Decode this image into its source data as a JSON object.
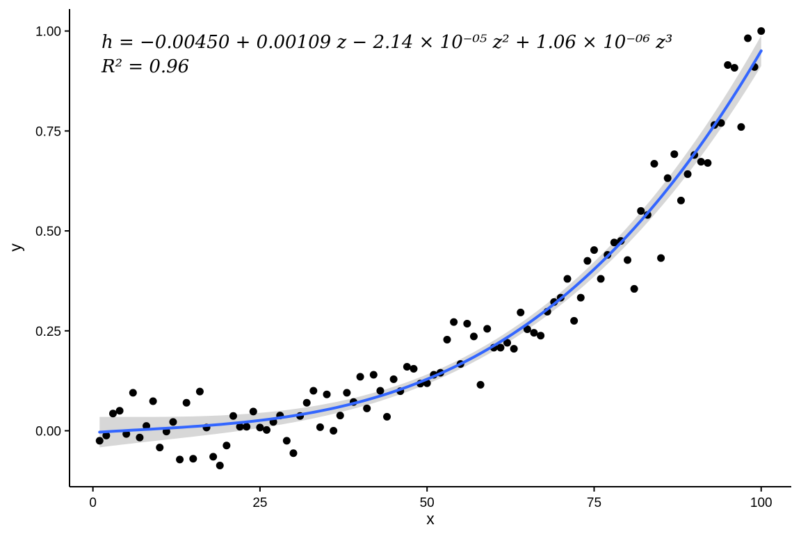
{
  "chart_data": {
    "type": "scatter",
    "xlabel": "x",
    "ylabel": "y",
    "xlim": [
      -3.5,
      104.5
    ],
    "ylim": [
      -0.14,
      1.055
    ],
    "x_ticks": [
      0,
      25,
      50,
      75,
      100
    ],
    "x_tick_labels": [
      "0",
      "25",
      "50",
      "75",
      "100"
    ],
    "y_ticks": [
      0,
      0.25,
      0.5,
      0.75,
      1.0
    ],
    "y_tick_labels": [
      "0.00",
      "0.25",
      "0.50",
      "0.75",
      "1.00"
    ],
    "grid": false,
    "legend": "none",
    "point_color": "#000000",
    "fit_color": "#3366ff",
    "band_color": "#d3d3d3",
    "annotations": {
      "equation": "h = −0.00450 + 0.00109 z − 2.14 × 10⁻⁰⁵ z² + 1.06 × 10⁻⁰⁶ z³",
      "r_squared": "R² = 0.96"
    },
    "fit_coefficients": [
      -0.0045,
      0.00109,
      -2.14e-05,
      1.06e-06
    ],
    "band_halfwidth": {
      "ends": 0.038,
      "middle": 0.012
    },
    "points": {
      "x": [
        1,
        2,
        3,
        4,
        5,
        6,
        7,
        8,
        9,
        10,
        11,
        12,
        13,
        14,
        15,
        16,
        17,
        18,
        19,
        20,
        21,
        22,
        23,
        24,
        25,
        26,
        27,
        28,
        29,
        30,
        31,
        32,
        33,
        34,
        35,
        36,
        37,
        38,
        39,
        40,
        41,
        42,
        43,
        44,
        45,
        46,
        47,
        48,
        49,
        50,
        51,
        52,
        53,
        54,
        55,
        56,
        57,
        58,
        59,
        60,
        61,
        62,
        63,
        64,
        65,
        66,
        67,
        68,
        69,
        70,
        71,
        72,
        73,
        74,
        75,
        76,
        77,
        78,
        79,
        80,
        81,
        82,
        83,
        84,
        85,
        86,
        87,
        88,
        89,
        90,
        91,
        92,
        93,
        94,
        95,
        96,
        97,
        98,
        99,
        100
      ],
      "y": [
        -0.025,
        -0.012,
        0.043,
        0.05,
        -0.008,
        0.095,
        -0.017,
        0.012,
        0.074,
        -0.042,
        -0.002,
        0.022,
        -0.072,
        0.07,
        -0.07,
        0.098,
        0.008,
        -0.065,
        -0.087,
        -0.037,
        0.037,
        0.01,
        0.01,
        0.048,
        0.008,
        0.002,
        0.022,
        0.038,
        -0.025,
        -0.056,
        0.037,
        0.07,
        0.1,
        0.009,
        0.091,
        0.0,
        0.038,
        0.095,
        0.072,
        0.135,
        0.056,
        0.14,
        0.1,
        0.035,
        0.129,
        0.099,
        0.16,
        0.155,
        0.118,
        0.119,
        0.14,
        0.145,
        0.228,
        0.272,
        0.167,
        0.268,
        0.236,
        0.115,
        0.255,
        0.208,
        0.208,
        0.22,
        0.205,
        0.296,
        0.254,
        0.245,
        0.238,
        0.298,
        0.322,
        0.333,
        0.38,
        0.275,
        0.333,
        0.425,
        0.452,
        0.38,
        0.44,
        0.471,
        0.475,
        0.427,
        0.355,
        0.55,
        0.54,
        0.668,
        0.432,
        0.632,
        0.692,
        0.576,
        0.642,
        0.69,
        0.673,
        0.67,
        0.765,
        0.77,
        0.915,
        0.908,
        0.76,
        0.982,
        0.91,
        1.0
      ]
    }
  }
}
